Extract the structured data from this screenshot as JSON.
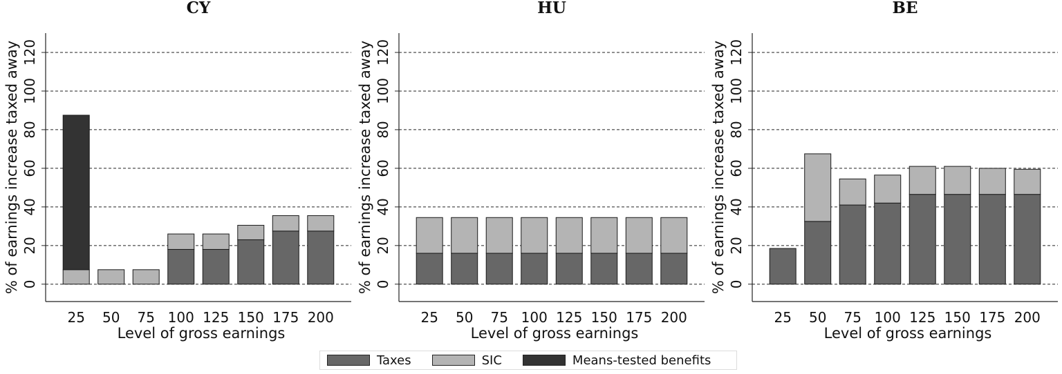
{
  "colors": {
    "Taxes": "#676767",
    "SIC": "#b4b4b4",
    "Means-tested benefits": "#333333"
  },
  "legend": [
    {
      "key": "Taxes",
      "label": "Taxes"
    },
    {
      "key": "SIC",
      "label": "SIC"
    },
    {
      "key": "Means-tested benefits",
      "label": "Means-tested benefits"
    }
  ],
  "chart_data": [
    {
      "type": "bar",
      "stacked": true,
      "title": "CY",
      "xlabel": "Level of gross earnings",
      "ylabel": "% of earnings increase taxed away",
      "categories": [
        "25",
        "50",
        "75",
        "100",
        "125",
        "150",
        "175",
        "200"
      ],
      "yticks": [
        0,
        20,
        40,
        60,
        80,
        100,
        120
      ],
      "ylim": [
        -9,
        130
      ],
      "grid": "horizontal dashed",
      "series": [
        {
          "name": "Taxes",
          "values": [
            0,
            0,
            0,
            18,
            18,
            23,
            27.5,
            27.5
          ]
        },
        {
          "name": "SIC",
          "values": [
            7.5,
            7.5,
            7.5,
            8,
            8,
            7.5,
            8,
            8
          ]
        },
        {
          "name": "Means-tested benefits",
          "values": [
            80,
            0,
            0,
            0,
            0,
            0,
            0,
            0
          ]
        }
      ]
    },
    {
      "type": "bar",
      "stacked": true,
      "title": "HU",
      "xlabel": "Level of gross earnings",
      "ylabel": "% of earnings increase taxed away",
      "categories": [
        "25",
        "50",
        "75",
        "100",
        "125",
        "150",
        "175",
        "200"
      ],
      "yticks": [
        0,
        20,
        40,
        60,
        80,
        100,
        120
      ],
      "ylim": [
        -9,
        130
      ],
      "grid": "horizontal dashed",
      "series": [
        {
          "name": "Taxes",
          "values": [
            16,
            16,
            16,
            16,
            16,
            16,
            16,
            16
          ]
        },
        {
          "name": "SIC",
          "values": [
            18.5,
            18.5,
            18.5,
            18.5,
            18.5,
            18.5,
            18.5,
            18.5
          ]
        },
        {
          "name": "Means-tested benefits",
          "values": [
            0,
            0,
            0,
            0,
            0,
            0,
            0,
            0
          ]
        }
      ]
    },
    {
      "type": "bar",
      "stacked": true,
      "title": "BE",
      "xlabel": "Level of gross earnings",
      "ylabel": "% of earnings increase taxed away",
      "categories": [
        "25",
        "50",
        "75",
        "100",
        "125",
        "150",
        "175",
        "200"
      ],
      "yticks": [
        0,
        20,
        40,
        60,
        80,
        100,
        120
      ],
      "ylim": [
        -9,
        130
      ],
      "grid": "horizontal dashed",
      "series": [
        {
          "name": "Taxes",
          "values": [
            18.5,
            32.5,
            41,
            42,
            46.5,
            46.5,
            46.5,
            46.5
          ]
        },
        {
          "name": "SIC",
          "values": [
            0,
            35,
            13.5,
            14.5,
            14.5,
            14.5,
            13.5,
            13
          ]
        },
        {
          "name": "Means-tested benefits",
          "values": [
            0,
            0,
            0,
            0,
            0,
            0,
            0,
            0
          ]
        }
      ]
    }
  ]
}
